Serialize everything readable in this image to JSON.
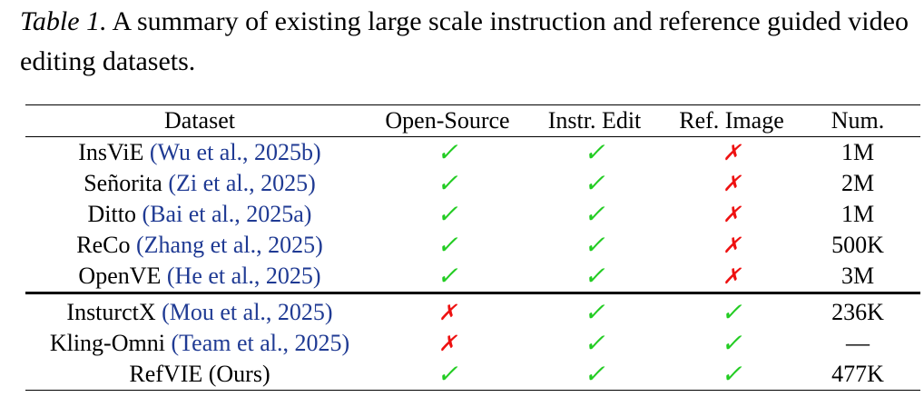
{
  "caption": {
    "label": "Table 1.",
    "text": "A summary of existing large scale instruction and reference guided video editing datasets."
  },
  "table": {
    "headers": [
      "Dataset",
      "Open-Source",
      "Instr. Edit",
      "Ref. Image",
      "Num."
    ],
    "symbols": {
      "yes": "✓",
      "no": "✗"
    },
    "rows": [
      {
        "name": "InsViE",
        "cite": "(Wu et al., 2025b)",
        "open_source": "✓",
        "instr_edit": "✓",
        "ref_image": "✗",
        "num": "1M"
      },
      {
        "name": "Señorita",
        "cite": "(Zi et al., 2025)",
        "open_source": "✓",
        "instr_edit": "✓",
        "ref_image": "✗",
        "num": "2M"
      },
      {
        "name": "Ditto",
        "cite": "(Bai et al., 2025a)",
        "open_source": "✓",
        "instr_edit": "✓",
        "ref_image": "✗",
        "num": "1M"
      },
      {
        "name": "ReCo",
        "cite": "(Zhang et al., 2025)",
        "open_source": "✓",
        "instr_edit": "✓",
        "ref_image": "✗",
        "num": "500K"
      },
      {
        "name": "OpenVE",
        "cite": "(He et al., 2025)",
        "open_source": "✓",
        "instr_edit": "✓",
        "ref_image": "✗",
        "num": "3M"
      },
      {
        "name": "InsturctX",
        "cite": "(Mou et al., 2025)",
        "open_source": "✗",
        "instr_edit": "✓",
        "ref_image": "✓",
        "num": "236K"
      },
      {
        "name": "Kling-Omni",
        "cite": "(Team et al., 2025)",
        "open_source": "✗",
        "instr_edit": "✓",
        "ref_image": "✓",
        "num": "—"
      },
      {
        "name": "RefVIE (Ours)",
        "cite": "",
        "open_source": "✓",
        "instr_edit": "✓",
        "ref_image": "✓",
        "num": "477K"
      }
    ]
  }
}
